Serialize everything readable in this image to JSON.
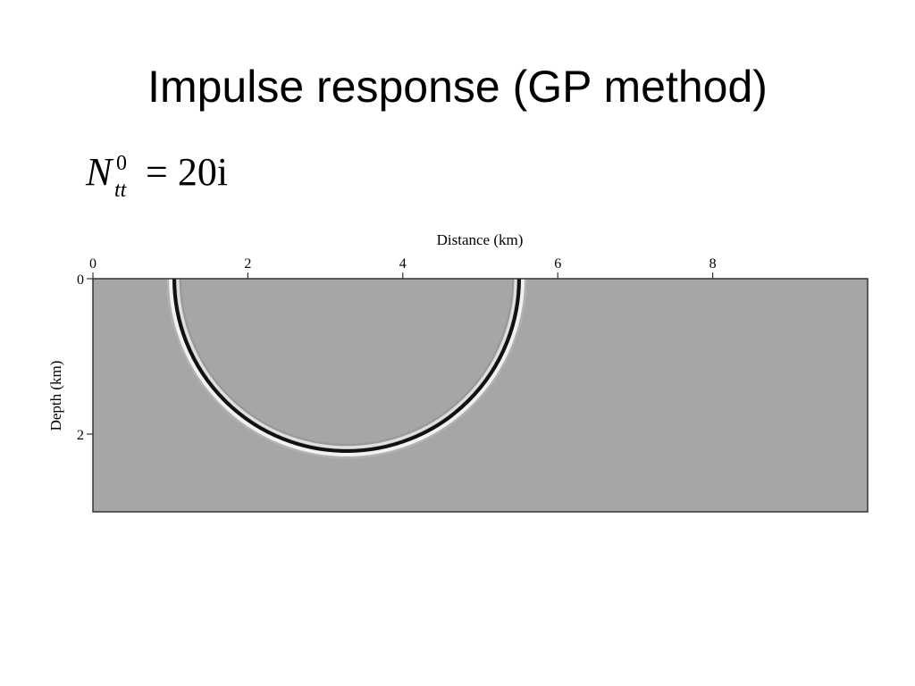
{
  "title": "Impulse response (GP method)",
  "formula": {
    "base": "N",
    "subscript": "tt",
    "superscript": "0",
    "rhs": "= 20i"
  },
  "chart_data": {
    "type": "image",
    "xlabel": "Distance (km)",
    "ylabel": "Depth (km)",
    "xlim": [
      0,
      10
    ],
    "ylim": [
      0,
      3
    ],
    "xticks": [
      0,
      2,
      4,
      6,
      8
    ],
    "yticks": [
      0,
      2
    ],
    "background": "#a6a6a6"
  }
}
